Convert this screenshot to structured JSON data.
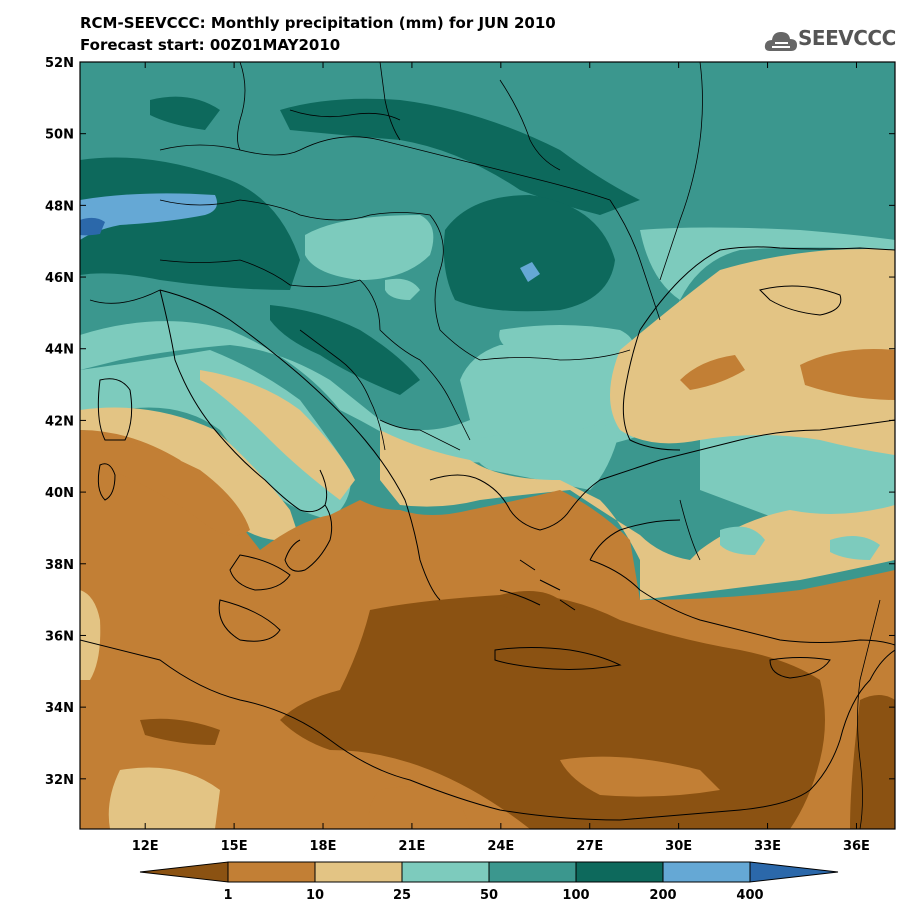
{
  "header": {
    "title": "RCM-SEEVCCC: Monthly precipitation (mm) for JUN 2010",
    "subtitle": "Forecast start: 00Z01MAY2010",
    "logo_text": "SEEVCCC",
    "logo_icon": "cloud-icon"
  },
  "map": {
    "projection": "lat-lon",
    "lon_range": [
      9.8,
      37.3
    ],
    "lat_range": [
      30.6,
      52.0
    ],
    "lat_labels": [
      "52N",
      "50N",
      "48N",
      "46N",
      "44N",
      "42N",
      "40N",
      "38N",
      "36N",
      "34N",
      "32N"
    ],
    "lat_values": [
      52,
      50,
      48,
      46,
      44,
      42,
      40,
      38,
      36,
      34,
      32
    ],
    "lon_labels": [
      "12E",
      "15E",
      "18E",
      "21E",
      "24E",
      "27E",
      "30E",
      "33E",
      "36E"
    ],
    "lon_values": [
      12,
      15,
      18,
      21,
      24,
      27,
      30,
      33,
      36
    ]
  },
  "legend": {
    "unit": "mm",
    "boundary_labels": [
      "1",
      "10",
      "25",
      "50",
      "100",
      "200",
      "400"
    ],
    "colors": [
      "#8b5212",
      "#c27f35",
      "#e3c484",
      "#7dcbbd",
      "#3b978e",
      "#0d695c",
      "#65a8d5",
      "#2b68aa"
    ]
  }
}
